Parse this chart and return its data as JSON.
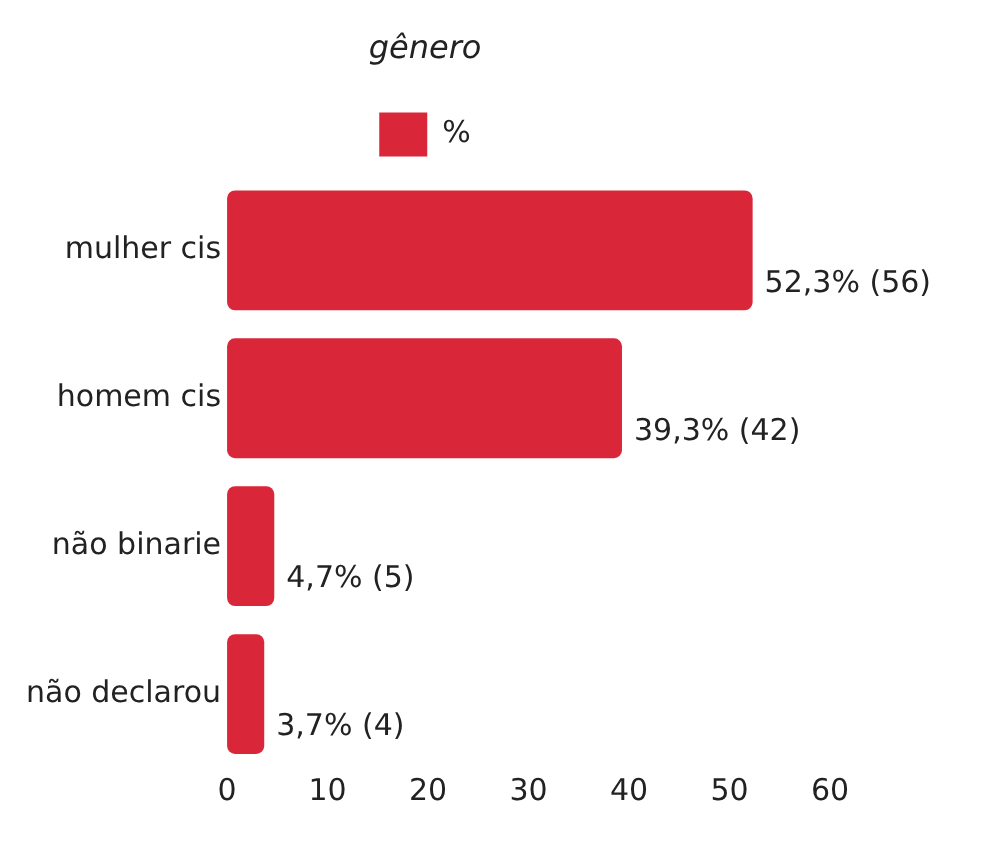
{
  "chart_data": {
    "type": "bar",
    "orientation": "horizontal",
    "title": "gênero",
    "categories": [
      "mulher cis",
      "homem cis",
      "não binarie",
      "não declarou"
    ],
    "series": [
      {
        "name": "%",
        "color": "#d92638",
        "values": [
          52.3,
          39.3,
          4.7,
          3.7
        ],
        "value_labels": [
          "52,3% (56)",
          "39,3% (42)",
          "4,7% (5)",
          "3,7% (4)"
        ]
      }
    ],
    "xlim": [
      0,
      60
    ],
    "xticks": [
      0,
      10,
      20,
      30,
      40,
      50,
      60
    ],
    "grid": false,
    "legend": "top"
  }
}
